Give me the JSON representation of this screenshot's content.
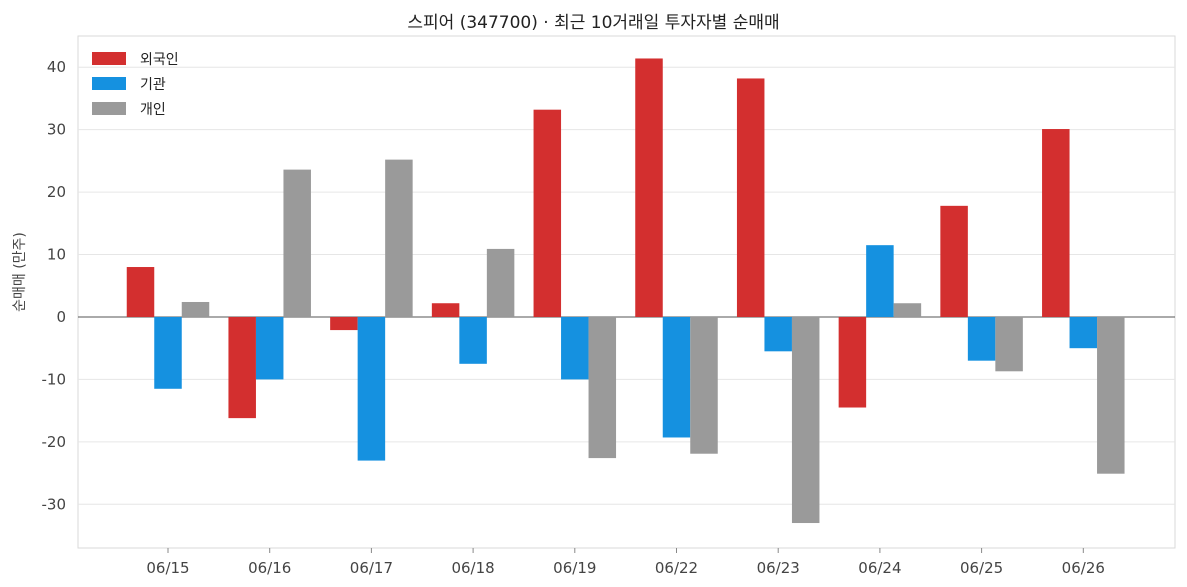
{
  "chart_data": {
    "type": "bar",
    "title": "스피어 (347700) · 최근 10거래일 투자자별 순매매",
    "xlabel": "",
    "ylabel": "순매매 (만주)",
    "categories": [
      "06/15",
      "06/16",
      "06/17",
      "06/18",
      "06/19",
      "06/22",
      "06/23",
      "06/24",
      "06/25",
      "06/26"
    ],
    "series": [
      {
        "name": "외국인",
        "color": "#d32f2f",
        "values": [
          8.0,
          -16.2,
          -2.1,
          2.2,
          33.2,
          41.4,
          38.2,
          -14.5,
          17.8,
          30.1
        ]
      },
      {
        "name": "기관",
        "color": "#1591e0",
        "values": [
          -11.5,
          -10.0,
          -23.0,
          -7.5,
          -10.0,
          -19.3,
          -5.5,
          11.5,
          -7.0,
          -5.0
        ]
      },
      {
        "name": "개인",
        "color": "#9a9a9a",
        "values": [
          2.4,
          23.6,
          25.2,
          10.9,
          -22.6,
          -21.9,
          -33.0,
          2.2,
          -8.7,
          -25.1
        ]
      }
    ],
    "ylim": [
      -37,
      45
    ],
    "yticks": [
      -30,
      -20,
      -10,
      0,
      10,
      20,
      30,
      40
    ],
    "grid": true,
    "legend_position": "top-left"
  }
}
